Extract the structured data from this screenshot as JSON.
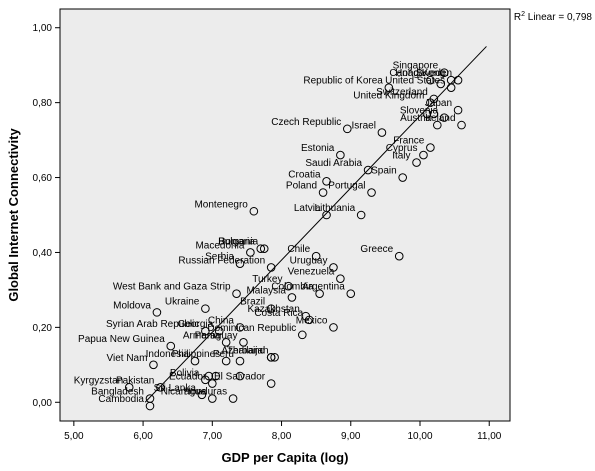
{
  "chart_data": {
    "type": "scatter",
    "xlabel": "GDP per Capita (log)",
    "ylabel": "Global Internet Connectivity",
    "xlim": [
      4.8,
      11.3
    ],
    "ylim": [
      -0.05,
      1.05
    ],
    "xticks": [
      "5,00",
      "6,00",
      "7,00",
      "8,00",
      "9,00",
      "10,00",
      "11,00"
    ],
    "xtick_values": [
      5,
      6,
      7,
      8,
      9,
      10,
      11
    ],
    "yticks": [
      "0,00",
      "0,20",
      "0,40",
      "0,60",
      "0,80",
      "1,00"
    ],
    "ytick_values": [
      0,
      0.2,
      0.4,
      0.6,
      0.8,
      1.0
    ],
    "grid": false,
    "background": "#ececec",
    "marker_color": "#000000",
    "fit_line": {
      "label_prefix": "R",
      "label_sup": "2",
      "label_text": " Linear = 0,798",
      "x": [
        6.03,
        10.96
      ],
      "y": [
        0.0,
        0.95
      ]
    },
    "points": [
      {
        "label": "Sweden",
        "x": 10.55,
        "y": 0.86
      },
      {
        "label": "Singapore",
        "x": 10.35,
        "y": 0.88
      },
      {
        "label": "Hong Kong",
        "x": 10.45,
        "y": 0.86
      },
      {
        "label": "Canada",
        "x": 10.15,
        "y": 0.86
      },
      {
        "label": "Republic of Korea",
        "x": 9.55,
        "y": 0.84
      },
      {
        "label": "",
        "x": 10.3,
        "y": 0.85
      },
      {
        "label": "United Kingdom",
        "x": 10.15,
        "y": 0.8
      },
      {
        "label": "United States",
        "x": 10.45,
        "y": 0.84
      },
      {
        "label": "Switzerland",
        "x": 10.2,
        "y": 0.81
      },
      {
        "label": "Japan",
        "x": 10.55,
        "y": 0.78
      },
      {
        "label": "",
        "x": 10.1,
        "y": 0.77
      },
      {
        "label": "",
        "x": 10.2,
        "y": 0.77
      },
      {
        "label": "Slovenia",
        "x": 10.35,
        "y": 0.76
      },
      {
        "label": "Ireland",
        "x": 10.6,
        "y": 0.74
      },
      {
        "label": "Czech Republic",
        "x": 8.95,
        "y": 0.73
      },
      {
        "label": "Israel",
        "x": 9.45,
        "y": 0.72
      },
      {
        "label": "Austria",
        "x": 10.25,
        "y": 0.74
      },
      {
        "label": "Estonia",
        "x": 8.85,
        "y": 0.66
      },
      {
        "label": "Cyprus",
        "x": 10.05,
        "y": 0.66
      },
      {
        "label": "France",
        "x": 10.15,
        "y": 0.68
      },
      {
        "label": "Saudi Arabia",
        "x": 9.25,
        "y": 0.62
      },
      {
        "label": "Italy",
        "x": 9.95,
        "y": 0.64
      },
      {
        "label": "Spain",
        "x": 9.75,
        "y": 0.6
      },
      {
        "label": "Croatia",
        "x": 8.65,
        "y": 0.59
      },
      {
        "label": "Poland",
        "x": 8.6,
        "y": 0.56
      },
      {
        "label": "Portugal",
        "x": 9.3,
        "y": 0.56
      },
      {
        "label": "Montenegro",
        "x": 7.6,
        "y": 0.51
      },
      {
        "label": "Lithuania",
        "x": 9.15,
        "y": 0.5
      },
      {
        "label": "Latvia",
        "x": 8.65,
        "y": 0.5
      },
      {
        "label": "Bulgaria",
        "x": 7.7,
        "y": 0.41
      },
      {
        "label": "Macedonia",
        "x": 7.55,
        "y": 0.4
      },
      {
        "label": "Romania",
        "x": 7.75,
        "y": 0.41
      },
      {
        "label": "Chile",
        "x": 8.5,
        "y": 0.39
      },
      {
        "label": "Serbia",
        "x": 7.4,
        "y": 0.37
      },
      {
        "label": "Greece",
        "x": 9.7,
        "y": 0.39
      },
      {
        "label": "Uruguay",
        "x": 8.75,
        "y": 0.36
      },
      {
        "label": "Russian Federation",
        "x": 7.85,
        "y": 0.36
      },
      {
        "label": "Turkey",
        "x": 8.1,
        "y": 0.31
      },
      {
        "label": "Venezuela",
        "x": 8.85,
        "y": 0.33
      },
      {
        "label": "West Bank and Gaza Strip",
        "x": 7.35,
        "y": 0.29
      },
      {
        "label": "Colombia",
        "x": 8.55,
        "y": 0.29
      },
      {
        "label": "Argentina",
        "x": 9.0,
        "y": 0.29
      },
      {
        "label": "Moldova",
        "x": 6.2,
        "y": 0.24
      },
      {
        "label": "Ukraine",
        "x": 6.9,
        "y": 0.25
      },
      {
        "label": "Brazil",
        "x": 7.85,
        "y": 0.25
      },
      {
        "label": "Malaysia",
        "x": 8.15,
        "y": 0.28
      },
      {
        "label": "Syrian Arab Republic",
        "x": 6.9,
        "y": 0.19
      },
      {
        "label": "Georgia",
        "x": 7.1,
        "y": 0.19
      },
      {
        "label": "China",
        "x": 7.4,
        "y": 0.2
      },
      {
        "label": "Kazakhstan",
        "x": 8.35,
        "y": 0.23
      },
      {
        "label": "Mexico",
        "x": 8.75,
        "y": 0.2
      },
      {
        "label": "Costa Rica",
        "x": 8.4,
        "y": 0.22
      },
      {
        "label": "Dominican Republic",
        "x": 8.3,
        "y": 0.18
      },
      {
        "label": "Papua New Guinea",
        "x": 6.4,
        "y": 0.15
      },
      {
        "label": "Armenia",
        "x": 7.2,
        "y": 0.16
      },
      {
        "label": "Paraguay",
        "x": 7.45,
        "y": 0.16
      },
      {
        "label": "Thailand",
        "x": 7.85,
        "y": 0.12
      },
      {
        "label": "Viet Nam",
        "x": 6.15,
        "y": 0.1
      },
      {
        "label": "Indonesia",
        "x": 6.75,
        "y": 0.11
      },
      {
        "label": "Philippines",
        "x": 7.2,
        "y": 0.11
      },
      {
        "label": "Peru",
        "x": 7.4,
        "y": 0.11
      },
      {
        "label": "",
        "x": 7.85,
        "y": 0.12
      },
      {
        "label": "Azerbaijan",
        "x": 7.9,
        "y": 0.12
      },
      {
        "label": "Kyrgyzstan",
        "x": 5.8,
        "y": 0.04
      },
      {
        "label": "Pakistan",
        "x": 6.25,
        "y": 0.04
      },
      {
        "label": "Bolivia",
        "x": 6.9,
        "y": 0.06
      },
      {
        "label": "Ecuador",
        "x": 7.0,
        "y": 0.05
      },
      {
        "label": "El Salvador",
        "x": 7.85,
        "y": 0.05
      },
      {
        "label": "",
        "x": 6.95,
        "y": 0.07
      },
      {
        "label": "",
        "x": 7.05,
        "y": 0.07
      },
      {
        "label": "Bangladesh",
        "x": 6.1,
        "y": 0.01
      },
      {
        "label": "Sri Lanka",
        "x": 6.85,
        "y": 0.02
      },
      {
        "label": "Nicaragua",
        "x": 7.0,
        "y": 0.01
      },
      {
        "label": "Honduras",
        "x": 7.3,
        "y": 0.01
      },
      {
        "label": "",
        "x": 7.4,
        "y": 0.07
      },
      {
        "label": "Cambodia",
        "x": 6.1,
        "y": -0.01
      }
    ]
  }
}
